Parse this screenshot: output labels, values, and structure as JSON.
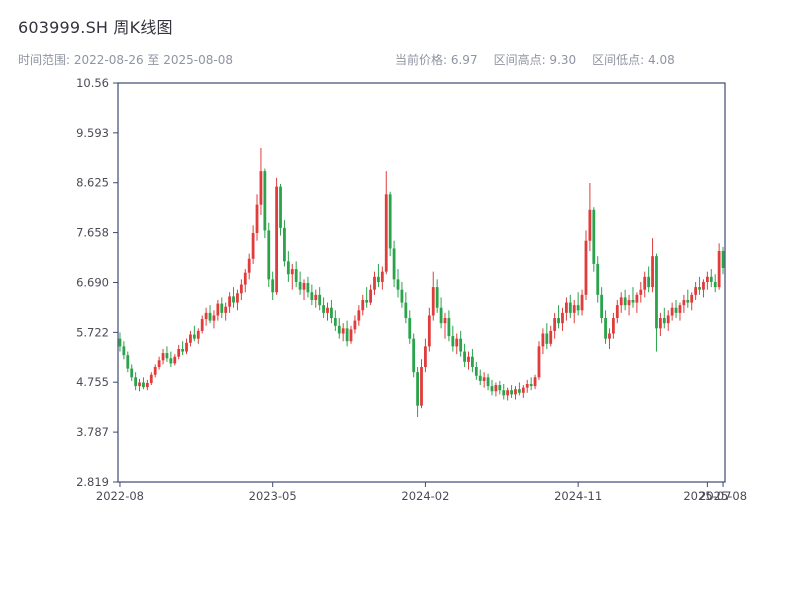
{
  "header": {
    "title": "603999.SH 周K线图",
    "range_label": "时间范围: 2022-08-26 至 2025-08-08",
    "stats": {
      "current_price": "当前价格: 6.97",
      "range_high": "区间高点: 9.30",
      "range_low": "区间低点: 4.08"
    }
  },
  "chart_data": {
    "type": "candlestick",
    "title": "603999.SH 周K线图",
    "interval": "weekly",
    "date_range": {
      "start": "2022-08-26",
      "end": "2025-08-08"
    },
    "current_price": 6.97,
    "range_high": 9.3,
    "range_low": 4.08,
    "ylim": [
      2.819,
      10.56
    ],
    "y_ticks": [
      "10.56",
      "9.593",
      "8.625",
      "7.658",
      "6.690",
      "5.722",
      "4.755",
      "3.787",
      "2.819"
    ],
    "x_ticks": [
      {
        "index": 0,
        "label": "2022-08"
      },
      {
        "index": 39,
        "label": "2023-05"
      },
      {
        "index": 78,
        "label": "2024-02"
      },
      {
        "index": 117,
        "label": "2024-11"
      },
      {
        "index": 150,
        "label": "2025-07"
      },
      {
        "index": 154,
        "label": "2025-08"
      }
    ],
    "up_color": "#e03c3c",
    "down_color": "#2aa34a",
    "axis_color": "#3d4a73",
    "grid": false,
    "legend": false,
    "candles": [
      [
        5.6,
        5.72,
        5.35,
        5.45
      ],
      [
        5.45,
        5.55,
        5.2,
        5.28
      ],
      [
        5.28,
        5.35,
        4.95,
        5.02
      ],
      [
        5.02,
        5.1,
        4.78,
        4.85
      ],
      [
        4.85,
        4.95,
        4.6,
        4.68
      ],
      [
        4.68,
        4.82,
        4.58,
        4.75
      ],
      [
        4.75,
        4.85,
        4.62,
        4.66
      ],
      [
        4.66,
        4.8,
        4.6,
        4.74
      ],
      [
        4.74,
        4.95,
        4.7,
        4.9
      ],
      [
        4.9,
        5.1,
        4.85,
        5.05
      ],
      [
        5.05,
        5.25,
        5.0,
        5.18
      ],
      [
        5.18,
        5.4,
        5.1,
        5.32
      ],
      [
        5.32,
        5.45,
        5.15,
        5.22
      ],
      [
        5.22,
        5.35,
        5.05,
        5.12
      ],
      [
        5.12,
        5.3,
        5.08,
        5.25
      ],
      [
        5.25,
        5.48,
        5.2,
        5.4
      ],
      [
        5.4,
        5.55,
        5.28,
        5.35
      ],
      [
        5.35,
        5.6,
        5.3,
        5.52
      ],
      [
        5.52,
        5.75,
        5.45,
        5.68
      ],
      [
        5.68,
        5.85,
        5.55,
        5.6
      ],
      [
        5.6,
        5.8,
        5.5,
        5.75
      ],
      [
        5.75,
        6.05,
        5.7,
        5.98
      ],
      [
        5.98,
        6.2,
        5.85,
        6.1
      ],
      [
        6.1,
        6.25,
        5.9,
        5.95
      ],
      [
        5.95,
        6.15,
        5.8,
        6.05
      ],
      [
        6.05,
        6.35,
        5.95,
        6.28
      ],
      [
        6.28,
        6.4,
        6.0,
        6.1
      ],
      [
        6.1,
        6.3,
        5.95,
        6.22
      ],
      [
        6.22,
        6.5,
        6.1,
        6.42
      ],
      [
        6.42,
        6.6,
        6.2,
        6.3
      ],
      [
        6.3,
        6.55,
        6.15,
        6.48
      ],
      [
        6.48,
        6.75,
        6.35,
        6.65
      ],
      [
        6.65,
        6.95,
        6.5,
        6.88
      ],
      [
        6.88,
        7.25,
        6.75,
        7.15
      ],
      [
        7.15,
        7.8,
        7.05,
        7.65
      ],
      [
        7.65,
        8.4,
        7.5,
        8.2
      ],
      [
        8.2,
        9.3,
        8.0,
        8.85
      ],
      [
        8.85,
        8.9,
        7.55,
        7.7
      ],
      [
        7.7,
        7.85,
        6.6,
        6.75
      ],
      [
        6.75,
        6.9,
        6.35,
        6.5
      ],
      [
        6.5,
        8.72,
        6.45,
        8.55
      ],
      [
        8.55,
        8.6,
        7.6,
        7.75
      ],
      [
        7.75,
        7.9,
        7.0,
        7.1
      ],
      [
        7.1,
        7.3,
        6.7,
        6.85
      ],
      [
        6.85,
        7.05,
        6.55,
        6.95
      ],
      [
        6.95,
        7.1,
        6.6,
        6.7
      ],
      [
        6.7,
        6.9,
        6.45,
        6.55
      ],
      [
        6.55,
        6.75,
        6.35,
        6.68
      ],
      [
        6.68,
        6.8,
        6.4,
        6.5
      ],
      [
        6.5,
        6.65,
        6.25,
        6.35
      ],
      [
        6.35,
        6.55,
        6.2,
        6.45
      ],
      [
        6.45,
        6.6,
        6.15,
        6.25
      ],
      [
        6.25,
        6.4,
        6.0,
        6.1
      ],
      [
        6.1,
        6.3,
        5.95,
        6.2
      ],
      [
        6.2,
        6.35,
        5.9,
        6.0
      ],
      [
        6.0,
        6.15,
        5.75,
        5.85
      ],
      [
        5.85,
        6.0,
        5.6,
        5.7
      ],
      [
        5.7,
        5.9,
        5.55,
        5.8
      ],
      [
        5.8,
        5.95,
        5.45,
        5.55
      ],
      [
        5.55,
        5.85,
        5.5,
        5.78
      ],
      [
        5.78,
        6.05,
        5.7,
        5.95
      ],
      [
        5.95,
        6.25,
        5.85,
        6.15
      ],
      [
        6.15,
        6.45,
        6.05,
        6.35
      ],
      [
        6.35,
        6.6,
        6.2,
        6.3
      ],
      [
        6.3,
        6.65,
        6.25,
        6.55
      ],
      [
        6.55,
        6.9,
        6.45,
        6.8
      ],
      [
        6.8,
        7.05,
        6.6,
        6.7
      ],
      [
        6.7,
        7.0,
        6.55,
        6.9
      ],
      [
        6.9,
        8.85,
        6.85,
        8.4
      ],
      [
        8.4,
        8.45,
        7.2,
        7.35
      ],
      [
        7.35,
        7.5,
        6.6,
        6.75
      ],
      [
        6.75,
        6.95,
        6.4,
        6.55
      ],
      [
        6.55,
        6.7,
        6.2,
        6.3
      ],
      [
        6.3,
        6.5,
        5.9,
        6.0
      ],
      [
        6.0,
        6.15,
        5.5,
        5.6
      ],
      [
        5.6,
        5.7,
        4.85,
        4.95
      ],
      [
        4.95,
        5.05,
        4.08,
        4.3
      ],
      [
        4.3,
        5.2,
        4.25,
        5.05
      ],
      [
        5.05,
        5.6,
        4.95,
        5.45
      ],
      [
        5.45,
        6.2,
        5.35,
        6.05
      ],
      [
        6.05,
        6.9,
        5.95,
        6.6
      ],
      [
        6.6,
        6.75,
        6.1,
        6.2
      ],
      [
        6.2,
        6.4,
        5.8,
        5.9
      ],
      [
        5.9,
        6.1,
        5.6,
        6.0
      ],
      [
        6.0,
        6.15,
        5.55,
        5.65
      ],
      [
        5.65,
        5.85,
        5.35,
        5.45
      ],
      [
        5.45,
        5.7,
        5.3,
        5.6
      ],
      [
        5.6,
        5.75,
        5.25,
        5.35
      ],
      [
        5.35,
        5.5,
        5.05,
        5.15
      ],
      [
        5.15,
        5.35,
        5.0,
        5.25
      ],
      [
        5.25,
        5.4,
        4.95,
        5.05
      ],
      [
        5.05,
        5.15,
        4.8,
        4.88
      ],
      [
        4.88,
        5.0,
        4.7,
        4.78
      ],
      [
        4.78,
        4.95,
        4.65,
        4.85
      ],
      [
        4.85,
        4.92,
        4.6,
        4.68
      ],
      [
        4.68,
        4.8,
        4.5,
        4.58
      ],
      [
        4.58,
        4.75,
        4.48,
        4.7
      ],
      [
        4.7,
        4.78,
        4.52,
        4.6
      ],
      [
        4.6,
        4.72,
        4.42,
        4.5
      ],
      [
        4.5,
        4.65,
        4.4,
        4.6
      ],
      [
        4.6,
        4.7,
        4.45,
        4.52
      ],
      [
        4.52,
        4.68,
        4.42,
        4.62
      ],
      [
        4.62,
        4.75,
        4.5,
        4.55
      ],
      [
        4.55,
        4.7,
        4.45,
        4.65
      ],
      [
        4.65,
        4.8,
        4.55,
        4.72
      ],
      [
        4.72,
        4.85,
        4.6,
        4.68
      ],
      [
        4.68,
        4.9,
        4.62,
        4.85
      ],
      [
        4.85,
        5.55,
        4.8,
        5.45
      ],
      [
        5.45,
        5.8,
        5.3,
        5.7
      ],
      [
        5.7,
        5.9,
        5.4,
        5.5
      ],
      [
        5.5,
        5.85,
        5.45,
        5.75
      ],
      [
        5.75,
        6.1,
        5.6,
        6.0
      ],
      [
        6.0,
        6.25,
        5.8,
        5.9
      ],
      [
        5.9,
        6.2,
        5.75,
        6.1
      ],
      [
        6.1,
        6.4,
        5.95,
        6.3
      ],
      [
        6.3,
        6.45,
        6.0,
        6.1
      ],
      [
        6.1,
        6.35,
        5.9,
        6.25
      ],
      [
        6.25,
        6.5,
        6.05,
        6.15
      ],
      [
        6.15,
        6.55,
        6.05,
        6.45
      ],
      [
        6.45,
        7.7,
        6.35,
        7.5
      ],
      [
        7.5,
        8.62,
        7.3,
        8.1
      ],
      [
        8.1,
        8.15,
        6.9,
        7.05
      ],
      [
        7.05,
        7.2,
        6.3,
        6.45
      ],
      [
        6.45,
        6.6,
        5.9,
        6.0
      ],
      [
        6.0,
        6.15,
        5.5,
        5.6
      ],
      [
        5.6,
        5.8,
        5.4,
        5.7
      ],
      [
        5.7,
        6.1,
        5.6,
        6.0
      ],
      [
        6.0,
        6.35,
        5.9,
        6.25
      ],
      [
        6.25,
        6.5,
        6.1,
        6.4
      ],
      [
        6.4,
        6.55,
        6.15,
        6.25
      ],
      [
        6.25,
        6.45,
        6.05,
        6.35
      ],
      [
        6.35,
        6.6,
        6.2,
        6.3
      ],
      [
        6.3,
        6.5,
        6.1,
        6.45
      ],
      [
        6.45,
        6.7,
        6.3,
        6.55
      ],
      [
        6.55,
        6.9,
        6.4,
        6.8
      ],
      [
        6.8,
        7.0,
        6.5,
        6.6
      ],
      [
        6.6,
        7.55,
        6.5,
        7.2
      ],
      [
        7.2,
        7.25,
        5.35,
        5.8
      ],
      [
        5.8,
        6.1,
        5.65,
        6.0
      ],
      [
        6.0,
        6.2,
        5.8,
        5.9
      ],
      [
        5.9,
        6.15,
        5.75,
        6.05
      ],
      [
        6.05,
        6.3,
        5.95,
        6.2
      ],
      [
        6.2,
        6.35,
        6.0,
        6.1
      ],
      [
        6.1,
        6.3,
        5.95,
        6.25
      ],
      [
        6.25,
        6.45,
        6.1,
        6.35
      ],
      [
        6.35,
        6.55,
        6.2,
        6.3
      ],
      [
        6.3,
        6.5,
        6.15,
        6.45
      ],
      [
        6.45,
        6.7,
        6.35,
        6.6
      ],
      [
        6.6,
        6.8,
        6.45,
        6.55
      ],
      [
        6.55,
        6.75,
        6.4,
        6.7
      ],
      [
        6.7,
        6.9,
        6.55,
        6.8
      ],
      [
        6.8,
        6.95,
        6.6,
        6.7
      ],
      [
        6.7,
        6.85,
        6.5,
        6.6
      ],
      [
        6.6,
        7.45,
        6.55,
        7.3
      ],
      [
        7.3,
        7.38,
        6.85,
        6.97
      ]
    ]
  }
}
